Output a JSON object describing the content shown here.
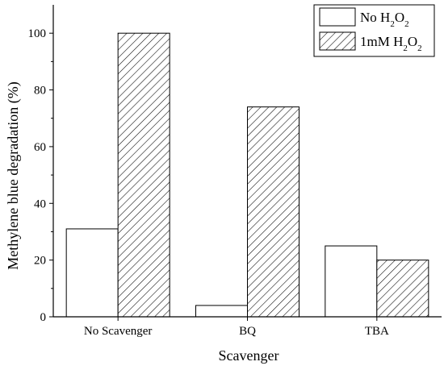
{
  "chart_data": {
    "type": "bar",
    "title": "",
    "xlabel": "Scavenger",
    "ylabel": "Methylene blue degradation (%)",
    "categories": [
      "No Scavenger",
      "BQ",
      "TBA"
    ],
    "series": [
      {
        "name": "No H2O2",
        "name_parts": [
          "No H",
          "2",
          "O",
          "2"
        ],
        "values": [
          31,
          4,
          25
        ],
        "fill": "plain"
      },
      {
        "name": "1mM H2O2",
        "name_parts": [
          "1mM H",
          "2",
          "O",
          "2"
        ],
        "values": [
          100,
          74,
          20
        ],
        "fill": "hatched"
      }
    ],
    "ylim": [
      0,
      110
    ],
    "yticks": [
      0,
      20,
      40,
      60,
      80,
      100
    ],
    "grid": false,
    "legend_position": "top-right",
    "colors": {
      "bar_edge": "#000000",
      "bar_fill": "#ffffff",
      "hatch": "#000000"
    }
  }
}
